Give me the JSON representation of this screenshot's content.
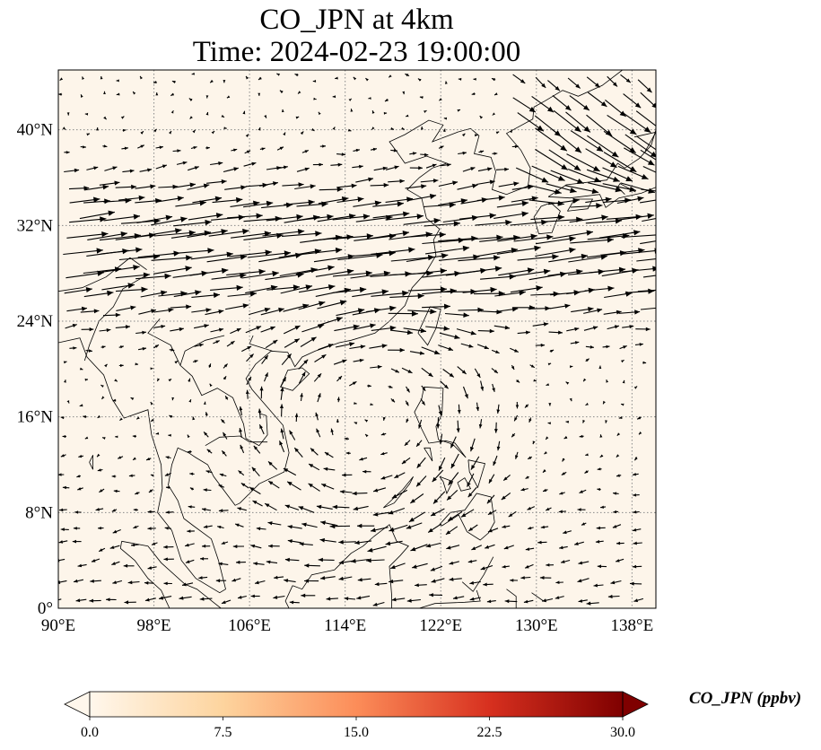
{
  "title": {
    "line1": "CO_JPN at 4km",
    "line2": "Time: 2024-02-23 19:00:00"
  },
  "map": {
    "lon_range": [
      90,
      140
    ],
    "lat_range": [
      0,
      45
    ],
    "background_color": "#fdf5ea",
    "lon_ticks": [
      {
        "value": 90,
        "label": "90°E"
      },
      {
        "value": 98,
        "label": "98°E"
      },
      {
        "value": 106,
        "label": "106°E"
      },
      {
        "value": 114,
        "label": "114°E"
      },
      {
        "value": 122,
        "label": "122°E"
      },
      {
        "value": 130,
        "label": "130°E"
      },
      {
        "value": 138,
        "label": "138°E"
      }
    ],
    "lat_ticks": [
      {
        "value": 0,
        "label": "0°"
      },
      {
        "value": 8,
        "label": "8°N"
      },
      {
        "value": 16,
        "label": "16°N"
      },
      {
        "value": 24,
        "label": "24°N"
      },
      {
        "value": 32,
        "label": "32°N"
      },
      {
        "value": 40,
        "label": "40°N"
      }
    ],
    "gridlines": "dotted",
    "vector_field": "wind arrows"
  },
  "colorbar": {
    "label": "CO_JPN (ppbv)",
    "min": 0,
    "max": 30,
    "ticks": [
      "0.0",
      "7.5",
      "15.0",
      "22.5",
      "30.0"
    ],
    "colormap": "OrRd",
    "colors": [
      "#fff7ec",
      "#fdd49e",
      "#fc8d59",
      "#d7301f",
      "#7f0000"
    ],
    "extend": "both"
  }
}
